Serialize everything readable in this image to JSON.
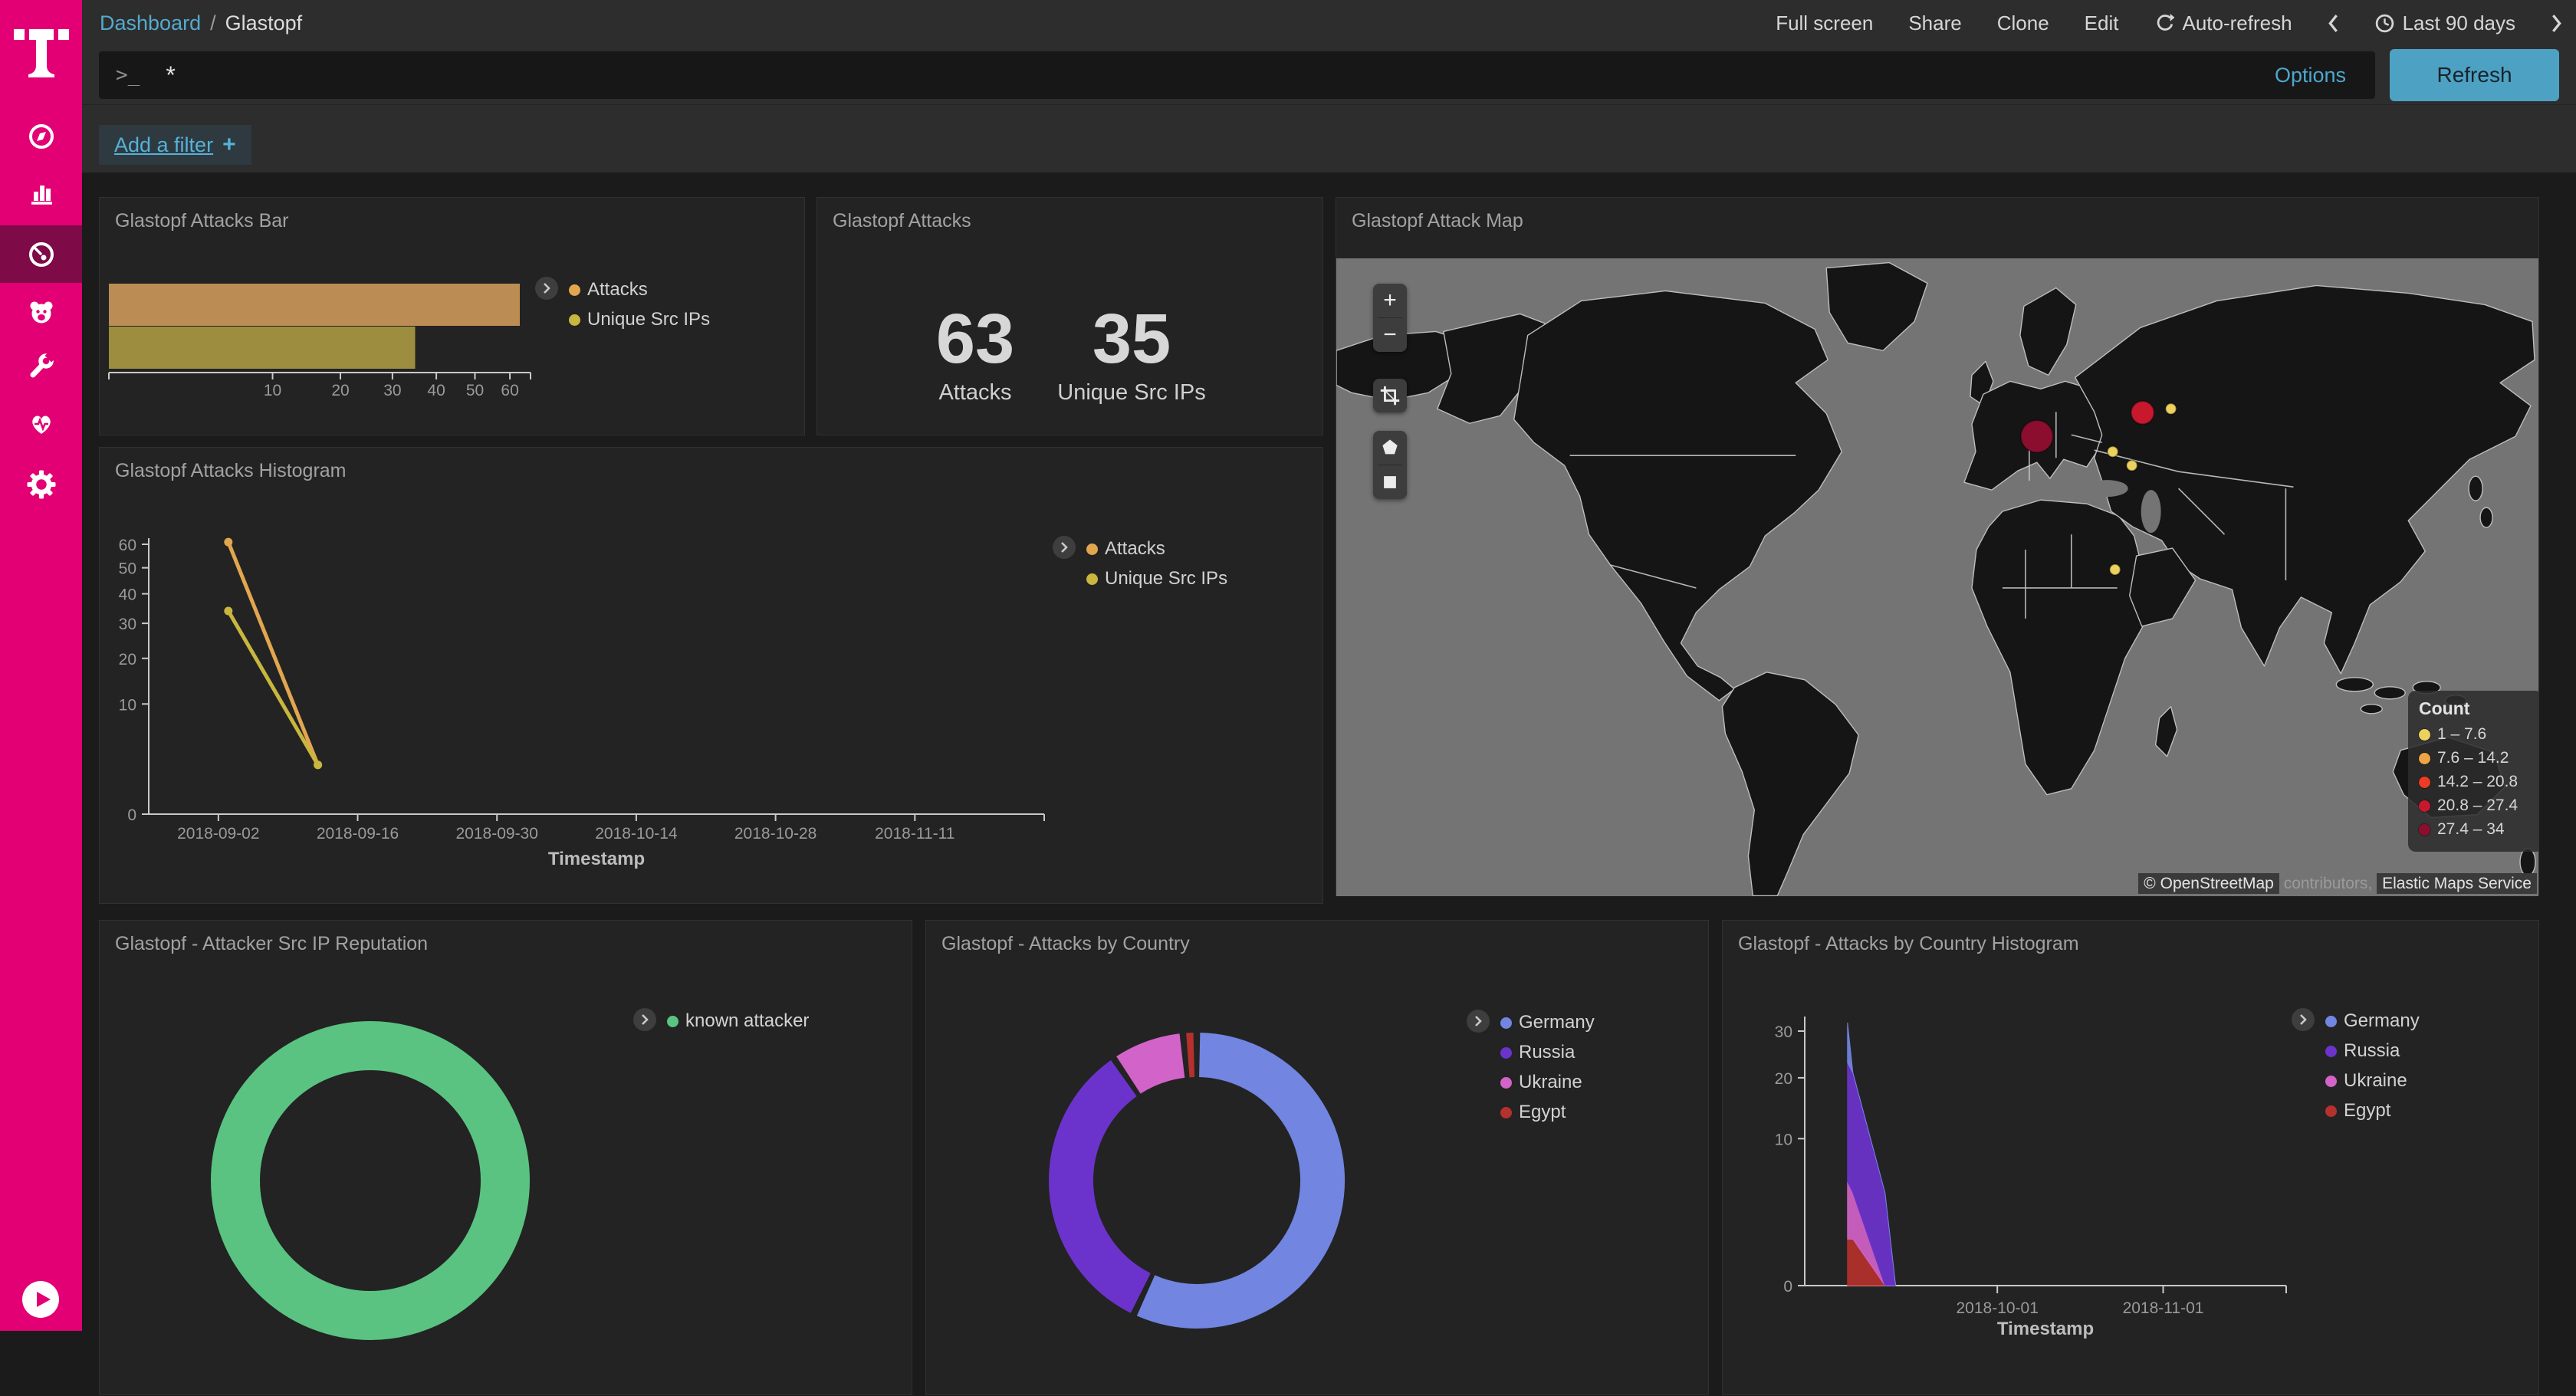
{
  "sidebar": {
    "colors": {
      "bg": "#e20074",
      "selected_bg": "#7e0a48"
    },
    "items": [
      {
        "id": "discover",
        "icon": "compass-icon",
        "selected": false
      },
      {
        "id": "visualize",
        "icon": "bar-chart-icon",
        "selected": false
      },
      {
        "id": "dashboard",
        "icon": "gauge-icon",
        "selected": true
      },
      {
        "id": "t-pot",
        "icon": "bear-icon",
        "selected": false
      },
      {
        "id": "dev-tools",
        "icon": "wrench-icon",
        "selected": false
      },
      {
        "id": "monitoring",
        "icon": "heartbeat-icon",
        "selected": false
      },
      {
        "id": "management",
        "icon": "gear-icon",
        "selected": false
      }
    ]
  },
  "top_bar": {
    "breadcrumb": {
      "section": "Dashboard",
      "separator": "/",
      "page": "Glastopf"
    },
    "actions": [
      "Full screen",
      "Share",
      "Clone",
      "Edit"
    ],
    "auto_refresh": "Auto-refresh",
    "time_range": "Last 90 days"
  },
  "query_bar": {
    "prompt": ">_",
    "query": "*",
    "options": "Options",
    "refresh": "Refresh"
  },
  "filter_bar": {
    "add_filter": "Add a filter",
    "plus": "+"
  },
  "panels": {
    "attacks_bar": {
      "title": "Glastopf Attacks Bar",
      "legend": [
        {
          "label": "Attacks",
          "color": "#e2a64f"
        },
        {
          "label": "Unique Src IPs",
          "color": "#c8b63e"
        }
      ]
    },
    "attacks_metric": {
      "title": "Glastopf Attacks",
      "metrics": [
        {
          "value": "63",
          "label": "Attacks"
        },
        {
          "value": "35",
          "label": "Unique Src IPs"
        }
      ]
    },
    "attack_map": {
      "title": "Glastopf Attack Map",
      "controls": {
        "zoom_in": "+",
        "zoom_out": "−"
      },
      "legend_title": "Count",
      "legend": [
        {
          "label": "1 – 7.6",
          "color": "#edd15e"
        },
        {
          "label": "7.6 – 14.2",
          "color": "#eda445"
        },
        {
          "label": "14.2 – 20.8",
          "color": "#ee3b24"
        },
        {
          "label": "20.8 – 27.4",
          "color": "#c8182e"
        },
        {
          "label": "27.4 – 34",
          "color": "#8c0e2e"
        }
      ],
      "attribution": {
        "osm": "© OpenStreetMap",
        "middle": " contributors, ",
        "service": "Elastic Maps Service"
      }
    },
    "attacks_histogram": {
      "title": "Glastopf Attacks Histogram",
      "legend": [
        {
          "label": "Attacks",
          "color": "#e2a64f"
        },
        {
          "label": "Unique Src IPs",
          "color": "#c8b63e"
        }
      ]
    },
    "src_ip_reputation": {
      "title": "Glastopf - Attacker Src IP Reputation",
      "legend": [
        {
          "label": "known attacker",
          "color": "#5ac382"
        }
      ]
    },
    "attacks_by_country": {
      "title": "Glastopf - Attacks by Country",
      "legend": [
        {
          "label": "Germany",
          "color": "#7285e1"
        },
        {
          "label": "Russia",
          "color": "#6c33cc"
        },
        {
          "label": "Ukraine",
          "color": "#d263c8"
        },
        {
          "label": "Egypt",
          "color": "#b5312d"
        }
      ]
    },
    "country_histogram": {
      "title": "Glastopf - Attacks by Country Histogram",
      "legend": [
        {
          "label": "Germany",
          "color": "#7285e1"
        },
        {
          "label": "Russia",
          "color": "#6c33cc"
        },
        {
          "label": "Ukraine",
          "color": "#d263c8"
        },
        {
          "label": "Egypt",
          "color": "#b5312d"
        }
      ]
    }
  },
  "chart_data": [
    {
      "id": "attacks_bar",
      "type": "bar",
      "orientation": "horizontal",
      "title": "Glastopf Attacks Bar",
      "categories": [
        "Attacks",
        "Unique Src IPs"
      ],
      "values": [
        63,
        35
      ],
      "colors": [
        "#bb8d55",
        "#9c8e3e"
      ],
      "x_ticks": [
        10,
        20,
        30,
        40,
        50,
        60
      ],
      "x_scale": "sqrt",
      "xlim": [
        0,
        63
      ]
    },
    {
      "id": "attacks_metric",
      "type": "metric",
      "title": "Glastopf Attacks",
      "metrics": [
        {
          "value": 63,
          "label": "Attacks"
        },
        {
          "value": 35,
          "label": "Unique Src IPs"
        }
      ]
    },
    {
      "id": "attacks_histogram",
      "type": "line",
      "title": "Glastopf Attacks Histogram",
      "x_domain": [
        "2018-08-26",
        "2018-11-24"
      ],
      "x_ticks": [
        "2018-09-02",
        "2018-09-16",
        "2018-09-30",
        "2018-10-14",
        "2018-10-28",
        "2018-11-11"
      ],
      "xlabel": "Timestamp",
      "y_ticks": [
        0,
        10,
        20,
        30,
        40,
        50,
        60
      ],
      "y_scale": "sqrt",
      "ylim": [
        0,
        60
      ],
      "series": [
        {
          "name": "Attacks",
          "color": "#e2a64f",
          "points": [
            [
              "2018-09-03",
              61
            ],
            [
              "2018-09-12",
              2
            ]
          ]
        },
        {
          "name": "Unique Src IPs",
          "color": "#c8b63e",
          "points": [
            [
              "2018-09-03",
              34
            ],
            [
              "2018-09-12",
              2
            ]
          ]
        }
      ]
    },
    {
      "id": "attack_map",
      "type": "map",
      "title": "Glastopf Attack Map",
      "legend_title": "Count",
      "buckets": [
        "1 – 7.6",
        "7.6 – 14.2",
        "14.2 – 20.8",
        "20.8 – 27.4",
        "27.4 – 34"
      ],
      "points": [
        {
          "x_frac": 0.583,
          "y_frac": 0.279,
          "radius": 21,
          "color": "#8c0e2e"
        },
        {
          "x_frac": 0.671,
          "y_frac": 0.242,
          "radius": 15,
          "color": "#c8182e"
        },
        {
          "x_frac": 0.694,
          "y_frac": 0.236,
          "radius": 7,
          "color": "#edd15e"
        },
        {
          "x_frac": 0.646,
          "y_frac": 0.303,
          "radius": 7,
          "color": "#edd15e"
        },
        {
          "x_frac": 0.662,
          "y_frac": 0.325,
          "radius": 7,
          "color": "#edd15e"
        },
        {
          "x_frac": 0.648,
          "y_frac": 0.488,
          "radius": 7,
          "color": "#edd15e"
        }
      ]
    },
    {
      "id": "src_ip_reputation",
      "type": "pie",
      "donut": true,
      "title": "Glastopf - Attacker Src IP Reputation",
      "labels": [
        "known attacker"
      ],
      "values_pct": [
        100
      ],
      "colors": [
        "#5ac382"
      ]
    },
    {
      "id": "attacks_by_country",
      "type": "pie",
      "donut": true,
      "title": "Glastopf - Attacks by Country",
      "labels": [
        "Germany",
        "Russia",
        "Ukraine",
        "Egypt"
      ],
      "values_pct": [
        57,
        33.5,
        8,
        1.5
      ],
      "colors": [
        "#7285e1",
        "#6c33cc",
        "#d263c8",
        "#b5312d"
      ]
    },
    {
      "id": "country_histogram",
      "type": "area",
      "stacked": true,
      "title": "Glastopf - Attacks by Country Histogram",
      "x_domain": [
        "2018-08-26",
        "2018-11-24"
      ],
      "x": [
        "2018-09-03",
        "2018-09-04",
        "2018-09-10",
        "2018-09-12"
      ],
      "x_ticks": [
        "2018-10-01",
        "2018-11-01"
      ],
      "xlabel": "Timestamp",
      "y_ticks": [
        0,
        10,
        20,
        30
      ],
      "y_scale": "sqrt",
      "ylim": [
        0,
        32
      ],
      "series_bottom_up": [
        {
          "name": "Egypt",
          "color": "#b5312d",
          "values": [
            1,
            1,
            0,
            0
          ]
        },
        {
          "name": "Ukraine",
          "color": "#d263c8",
          "values": [
            4,
            3,
            0,
            0
          ]
        },
        {
          "name": "Russia",
          "color": "#6c33cc",
          "values": [
            18,
            17,
            4,
            0
          ]
        },
        {
          "name": "Germany",
          "color": "#7285e1",
          "values": [
            9,
            0,
            0,
            0
          ]
        }
      ]
    }
  ]
}
